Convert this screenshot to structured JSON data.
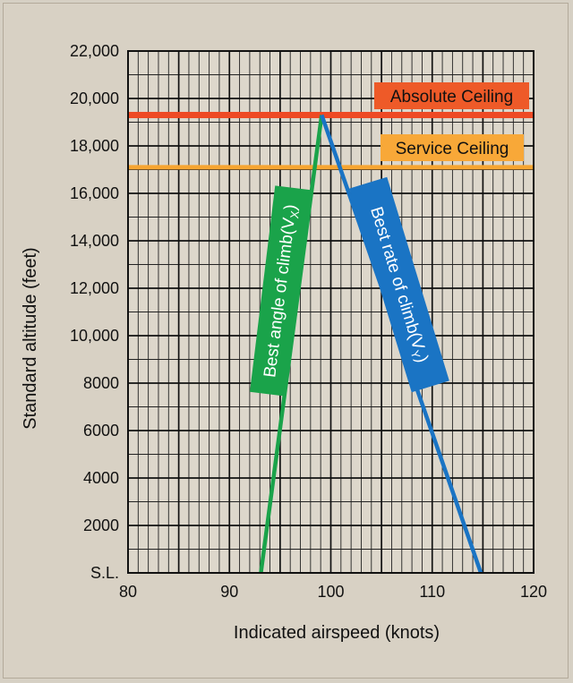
{
  "chart_data": {
    "type": "line",
    "xlabel": "Indicated airspeed (knots)",
    "ylabel": "Standard altitude (feet)",
    "xlim": [
      80,
      120
    ],
    "ylim": [
      0,
      22000
    ],
    "x_ticks": [
      80,
      90,
      100,
      110,
      120
    ],
    "x_tick_labels": [
      "80",
      "90",
      "100",
      "110",
      "120"
    ],
    "y_ticks": [
      0,
      2000,
      4000,
      6000,
      8000,
      10000,
      12000,
      14000,
      16000,
      18000,
      20000,
      22000
    ],
    "y_tick_labels": [
      "S.L.",
      "2000",
      "4000",
      "6000",
      "8000",
      "10,000",
      "12,000",
      "14,000",
      "16,000",
      "18,000",
      "20,000",
      "22,000"
    ],
    "grid": true,
    "series": [
      {
        "name": "Best angle of climb",
        "subscript": "X",
        "color": "#1aa34a",
        "points": [
          [
            93.1,
            0
          ],
          [
            99.1,
            19300
          ]
        ]
      },
      {
        "name": "Best rate of climb",
        "subscript": "Y",
        "color": "#1a74c4",
        "points": [
          [
            99.1,
            19300
          ],
          [
            114.8,
            0
          ]
        ]
      }
    ],
    "annotations": [
      {
        "label": "Absolute Ceiling",
        "altitude": 19300,
        "color": "#ee4a24",
        "box_color": "#ee5a28"
      },
      {
        "label": "Service Ceiling",
        "altitude": 17100,
        "color": "#f7a531",
        "box_color": "#f8a838"
      }
    ]
  }
}
